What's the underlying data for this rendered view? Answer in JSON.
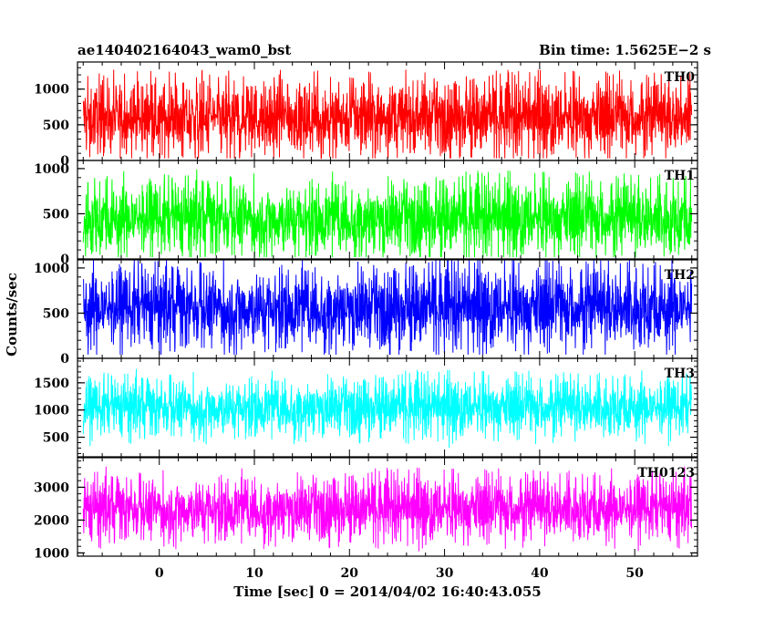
{
  "header": {
    "left_title": "ae140402164043_wam0_bst",
    "right_title": "Bin time: 1.5625E−2 s"
  },
  "chart_data": {
    "type": "line",
    "xlabel": "Time [sec] 0 = 2014/04/02 16:40:43.055",
    "ylabel": "Counts/sec",
    "xlim": [
      -8.6,
      56.6
    ],
    "x_ticks": [
      0,
      10,
      20,
      30,
      40,
      50
    ],
    "x_range": [
      -8,
      56
    ],
    "bin_time": 0.015625,
    "panels": [
      {
        "name": "TH0",
        "color": "#ff0000",
        "ylim": [
          0,
          1380
        ],
        "y_ticks": [
          0,
          500,
          1000
        ],
        "base": 600,
        "spread": 420,
        "min": 30,
        "max": 1380
      },
      {
        "name": "TH1",
        "color": "#00ff00",
        "ylim": [
          0,
          1090
        ],
        "y_ticks": [
          0,
          500,
          1000
        ],
        "base": 450,
        "spread": 330,
        "min": 20,
        "max": 1090
      },
      {
        "name": "TH2",
        "color": "#0000ff",
        "ylim": [
          0,
          1090
        ],
        "y_ticks": [
          0,
          500,
          1000
        ],
        "base": 560,
        "spread": 360,
        "min": 40,
        "max": 1090
      },
      {
        "name": "TH3",
        "color": "#00ffff",
        "ylim": [
          140,
          1950
        ],
        "y_ticks": [
          500,
          1000,
          1500
        ],
        "base": 1050,
        "spread": 430,
        "min": 250,
        "max": 1850
      },
      {
        "name": "TH0123",
        "color": "#ff00ff",
        "ylim": [
          900,
          3900
        ],
        "y_ticks": [
          1000,
          2000,
          3000
        ],
        "base": 2350,
        "spread": 780,
        "min": 1050,
        "max": 3800
      }
    ]
  }
}
